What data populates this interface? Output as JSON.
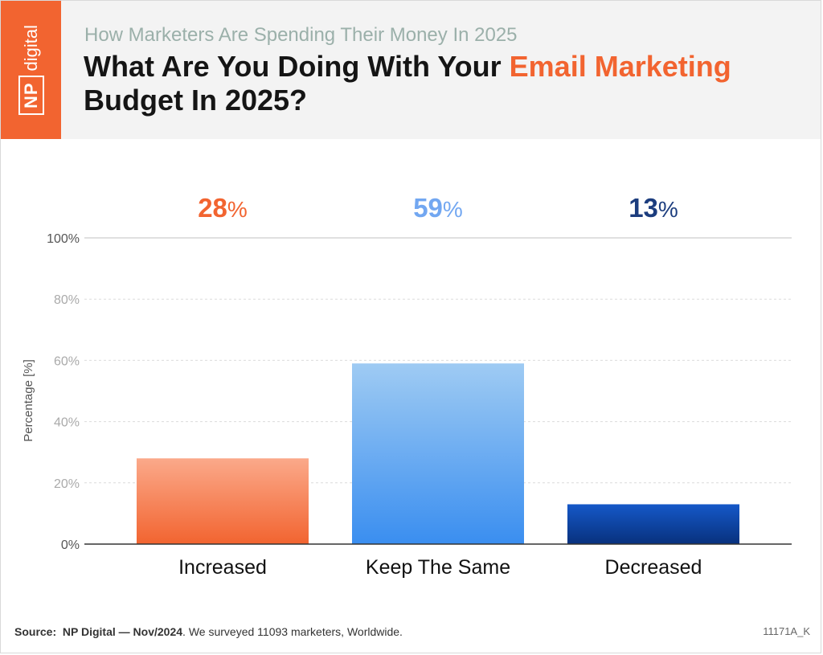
{
  "header": {
    "logo_np": "NP",
    "logo_digital": "digital",
    "subtitle": "How Marketers Are Spending Their Money In 2025",
    "title_part1": "What Are You Doing With Your ",
    "title_accent": "Email Marketing",
    "title_part2": "Budget In 2025?"
  },
  "chart_data": {
    "type": "bar",
    "title": "What Are You Doing With Your Email Marketing Budget In 2025?",
    "xlabel": "",
    "ylabel": "Percentage [%]",
    "ylim": [
      0,
      100
    ],
    "yticks": [
      0,
      20,
      40,
      60,
      80,
      100
    ],
    "ytick_labels": [
      "0%",
      "20%",
      "40%",
      "60%",
      "80%",
      "100%"
    ],
    "categories": [
      "Increased",
      "Keep The Same",
      "Decreased"
    ],
    "values": [
      28,
      59,
      13
    ],
    "value_labels": [
      "28",
      "59",
      "13"
    ],
    "value_suffix": "%",
    "colors": [
      {
        "top": "#fba98a",
        "bottom": "#f26430",
        "label": "#f26430"
      },
      {
        "top": "#9fcbf3",
        "bottom": "#3a8ef0",
        "label": "#72a7f1"
      },
      {
        "top": "#1558c8",
        "bottom": "#08317d",
        "label": "#1c3d7e"
      }
    ],
    "grid": true
  },
  "footer": {
    "source_label": "Source:",
    "source_org": "NP Digital — Nov/2024",
    "source_text": ". We surveyed 11093 marketers, Worldwide.",
    "code": "11171A_K"
  }
}
